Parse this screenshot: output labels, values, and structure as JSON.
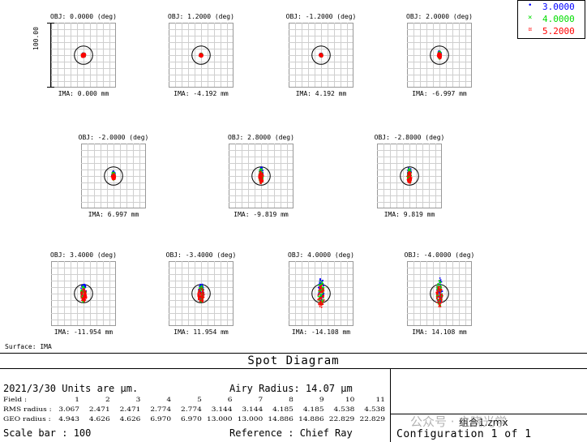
{
  "chart_data": {
    "type": "scatter",
    "title": "Spot Diagram",
    "legend": {
      "placement": "top-right",
      "entries": [
        {
          "marker": "•",
          "label": "3.0000",
          "color": "#0000ff"
        },
        {
          "marker": "×",
          "label": "4.0000",
          "color": "#00dd00"
        },
        {
          "marker": "¤",
          "label": "5.2000",
          "color": "#ff0000"
        }
      ]
    },
    "scale_axis_label": "100.00",
    "fields": [
      {
        "obj": "OBJ: 0.0000 (deg)",
        "ima": "IMA: 0.000 mm",
        "rms": 3.067,
        "geo": 4.943
      },
      {
        "obj": "OBJ: 1.2000 (deg)",
        "ima": "IMA: -4.192 mm",
        "rms": 2.471,
        "geo": 4.626
      },
      {
        "obj": "OBJ: -1.2000 (deg)",
        "ima": "IMA: 4.192 mm",
        "rms": 2.471,
        "geo": 4.626
      },
      {
        "obj": "OBJ: 2.0000 (deg)",
        "ima": "IMA: -6.997 mm",
        "rms": 2.774,
        "geo": 6.97
      },
      {
        "obj": "OBJ: -2.0000 (deg)",
        "ima": "IMA: 6.997 mm",
        "rms": 2.774,
        "geo": 6.97
      },
      {
        "obj": "OBJ: 2.8000 (deg)",
        "ima": "IMA: -9.819 mm",
        "rms": 3.144,
        "geo": 13.0
      },
      {
        "obj": "OBJ: -2.8000 (deg)",
        "ima": "IMA: 9.819 mm",
        "rms": 3.144,
        "geo": 13.0
      },
      {
        "obj": "OBJ: 3.4000 (deg)",
        "ima": "IMA: -11.954 mm",
        "rms": 4.185,
        "geo": 14.886
      },
      {
        "obj": "OBJ: -3.4000 (deg)",
        "ima": "IMA: 11.954 mm",
        "rms": 4.185,
        "geo": 14.886
      },
      {
        "obj": "OBJ: 4.0000 (deg)",
        "ima": "IMA: -14.108 mm",
        "rms": 4.538,
        "geo": 22.829
      },
      {
        "obj": "OBJ: -4.0000 (deg)",
        "ima": "IMA: 14.108 mm",
        "rms": 4.538,
        "geo": 22.829
      }
    ],
    "surface": "Surface: IMA"
  },
  "info": {
    "date_units": "2021/3/30   Units are µm.",
    "airy": "Airy Radius: 14.07 µm",
    "row_labels": {
      "field": "Field   :",
      "rms": "RMS radius :",
      "geo": "GEO radius :"
    },
    "field_numbers": [
      "1",
      "2",
      "3",
      "4",
      "5",
      "6",
      "7",
      "8",
      "9",
      "10",
      "11"
    ],
    "rms_values": [
      "3.067",
      "2.471",
      "2.471",
      "2.774",
      "2.774",
      "3.144",
      "3.144",
      "4.185",
      "4.185",
      "4.538",
      "4.538"
    ],
    "geo_values": [
      "4.943",
      "4.626",
      "4.626",
      "6.970",
      "6.970",
      "13.000",
      "13.000",
      "14.886",
      "14.886",
      "22.829",
      "22.829"
    ],
    "scale_bar": "Scale bar  : 100",
    "reference": "Reference   : Chief Ray",
    "file_name": "组合1.zmx",
    "configuration": "Configuration 1 of 1",
    "watermark": "公众号 · 之晓光学"
  }
}
